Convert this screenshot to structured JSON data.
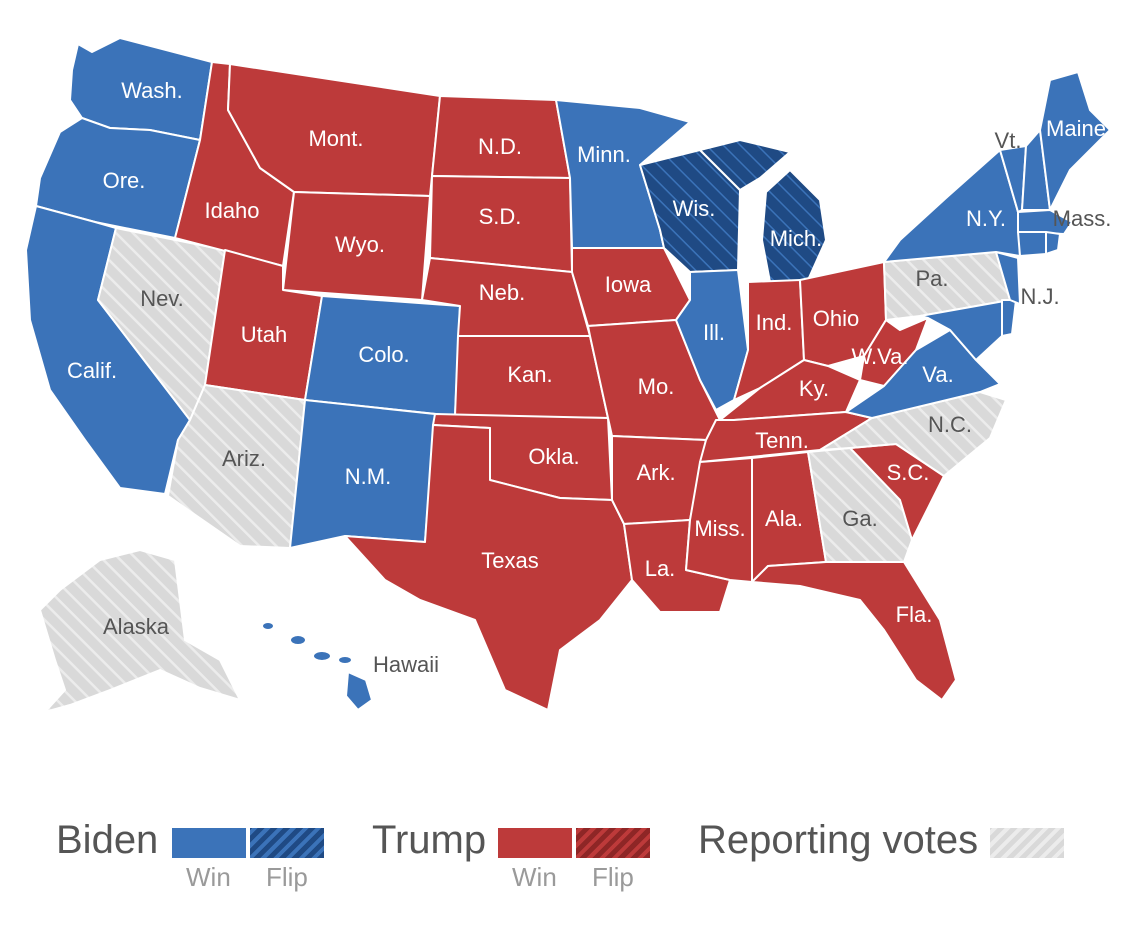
{
  "colors": {
    "biden_win": "#3b73b9",
    "biden_flip": "#1f4a84",
    "trump_win": "#bd3a3a",
    "trump_flip": "#8e2626",
    "reporting": "#d9d9d9",
    "border": "#ffffff"
  },
  "states": {
    "washington": {
      "label": "Wash.",
      "status": "biden_win"
    },
    "oregon": {
      "label": "Ore.",
      "status": "biden_win"
    },
    "california": {
      "label": "Calif.",
      "status": "biden_win"
    },
    "nevada": {
      "label": "Nev.",
      "status": "reporting"
    },
    "idaho": {
      "label": "Idaho",
      "status": "trump_win"
    },
    "montana": {
      "label": "Mont.",
      "status": "trump_win"
    },
    "wyoming": {
      "label": "Wyo.",
      "status": "trump_win"
    },
    "utah": {
      "label": "Utah",
      "status": "trump_win"
    },
    "arizona": {
      "label": "Ariz.",
      "status": "reporting"
    },
    "colorado": {
      "label": "Colo.",
      "status": "biden_win"
    },
    "new_mexico": {
      "label": "N.M.",
      "status": "biden_win"
    },
    "north_dakota": {
      "label": "N.D.",
      "status": "trump_win"
    },
    "south_dakota": {
      "label": "S.D.",
      "status": "trump_win"
    },
    "nebraska": {
      "label": "Neb.",
      "status": "trump_win"
    },
    "kansas": {
      "label": "Kan.",
      "status": "trump_win"
    },
    "oklahoma": {
      "label": "Okla.",
      "status": "trump_win"
    },
    "texas": {
      "label": "Texas",
      "status": "trump_win"
    },
    "minnesota": {
      "label": "Minn.",
      "status": "biden_win"
    },
    "iowa": {
      "label": "Iowa",
      "status": "trump_win"
    },
    "missouri": {
      "label": "Mo.",
      "status": "trump_win"
    },
    "arkansas": {
      "label": "Ark.",
      "status": "trump_win"
    },
    "louisiana": {
      "label": "La.",
      "status": "trump_win"
    },
    "wisconsin": {
      "label": "Wis.",
      "status": "biden_flip"
    },
    "illinois": {
      "label": "Ill.",
      "status": "biden_win"
    },
    "michigan": {
      "label": "Mich.",
      "status": "biden_flip"
    },
    "indiana": {
      "label": "Ind.",
      "status": "trump_win"
    },
    "ohio": {
      "label": "Ohio",
      "status": "trump_win"
    },
    "kentucky": {
      "label": "Ky.",
      "status": "trump_win"
    },
    "tennessee": {
      "label": "Tenn.",
      "status": "trump_win"
    },
    "mississippi": {
      "label": "Miss.",
      "status": "trump_win"
    },
    "alabama": {
      "label": "Ala.",
      "status": "trump_win"
    },
    "georgia": {
      "label": "Ga.",
      "status": "reporting"
    },
    "florida": {
      "label": "Fla.",
      "status": "trump_win"
    },
    "south_carolina": {
      "label": "S.C.",
      "status": "trump_win"
    },
    "north_carolina": {
      "label": "N.C.",
      "status": "reporting"
    },
    "virginia": {
      "label": "Va.",
      "status": "biden_win"
    },
    "west_virginia": {
      "label": "W.Va.",
      "status": "trump_win"
    },
    "pennsylvania": {
      "label": "Pa.",
      "status": "reporting"
    },
    "new_york": {
      "label": "N.Y.",
      "status": "biden_win"
    },
    "new_jersey": {
      "label": "N.J.",
      "status": "biden_win"
    },
    "maryland": {
      "label": "",
      "status": "biden_win"
    },
    "delaware": {
      "label": "",
      "status": "biden_win"
    },
    "vermont": {
      "label": "Vt.",
      "status": "biden_win"
    },
    "new_hampshire": {
      "label": "",
      "status": "biden_win"
    },
    "maine": {
      "label": "Maine",
      "status": "biden_win"
    },
    "massachusetts": {
      "label": "Mass.",
      "status": "biden_win"
    },
    "connecticut": {
      "label": "",
      "status": "biden_win"
    },
    "rhode_island": {
      "label": "",
      "status": "biden_win"
    },
    "alaska": {
      "label": "Alaska",
      "status": "reporting"
    },
    "hawaii": {
      "label": "Hawaii",
      "status": "biden_win"
    }
  },
  "legend": {
    "biden": {
      "title": "Biden",
      "win_label": "Win",
      "flip_label": "Flip"
    },
    "trump": {
      "title": "Trump",
      "win_label": "Win",
      "flip_label": "Flip"
    },
    "reporting": {
      "title": "Reporting votes"
    }
  }
}
